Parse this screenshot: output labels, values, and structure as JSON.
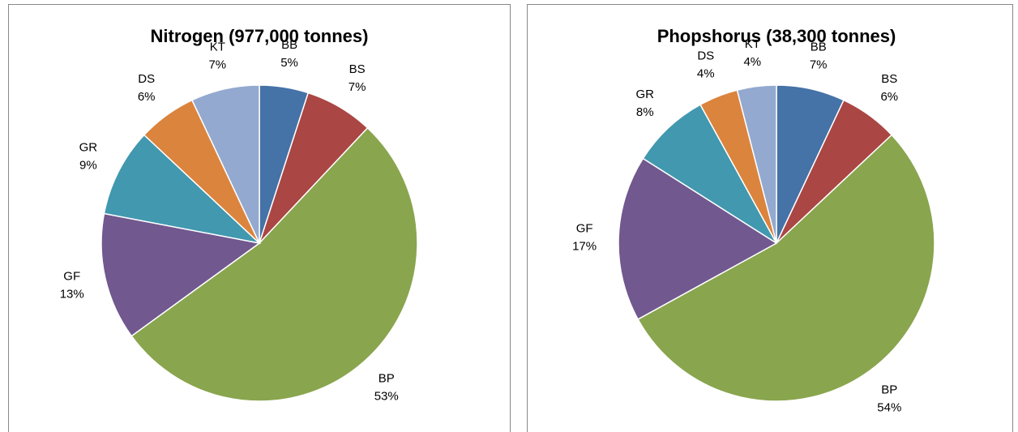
{
  "chart_data": [
    {
      "type": "pie",
      "title": "Nitrogen (977,000 tonnes)",
      "categories": [
        "BB",
        "BS",
        "BP",
        "GF",
        "GR",
        "DS",
        "KT"
      ],
      "values": [
        5,
        7,
        53,
        13,
        9,
        6,
        7
      ],
      "value_labels": [
        "5%",
        "7%",
        "53%",
        "13%",
        "9%",
        "6%",
        "7%"
      ],
      "colors": [
        "#4572a7",
        "#aa4643",
        "#89a54e",
        "#71588f",
        "#4198af",
        "#db843d",
        "#93a9cf"
      ]
    },
    {
      "type": "pie",
      "title": "Phopshorus (38,300 tonnes)",
      "categories": [
        "BB",
        "BS",
        "BP",
        "GF",
        "GR",
        "DS",
        "KT"
      ],
      "values": [
        7,
        6,
        54,
        17,
        8,
        4,
        4
      ],
      "value_labels": [
        "7%",
        "6%",
        "54%",
        "17%",
        "8%",
        "4%",
        "4%"
      ],
      "colors": [
        "#4572a7",
        "#aa4643",
        "#89a54e",
        "#71588f",
        "#4198af",
        "#db843d",
        "#93a9cf"
      ]
    }
  ]
}
